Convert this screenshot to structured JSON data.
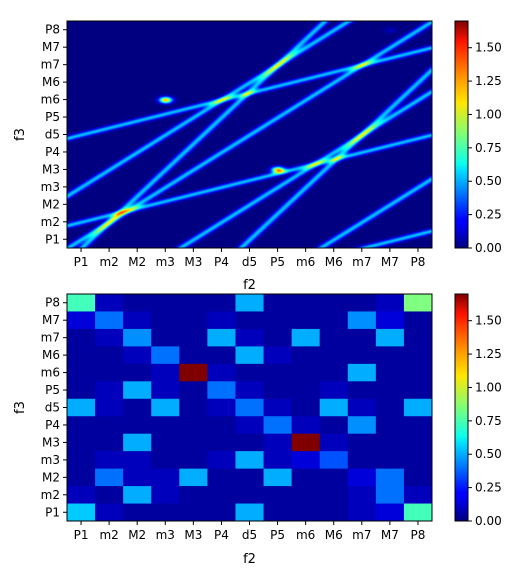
{
  "chart_data": [
    {
      "type": "heatmap",
      "render": "continuous",
      "xlabel": "f2",
      "ylabel": "f3",
      "x_ticks": [
        "P1",
        "m2",
        "M2",
        "m3",
        "M3",
        "P4",
        "d5",
        "P5",
        "m6",
        "M6",
        "m7",
        "M7",
        "P8"
      ],
      "y_ticks": [
        "P1",
        "m2",
        "M2",
        "m3",
        "M3",
        "P4",
        "d5",
        "P5",
        "m6",
        "M6",
        "m7",
        "M7",
        "P8"
      ],
      "colormap": "jet",
      "colorbar_range": [
        0,
        1.7
      ],
      "colorbar_ticks": [
        "0.00",
        "0.25",
        "0.50",
        "0.75",
        "1.00",
        "1.25",
        "1.50"
      ],
      "colorbar_tick_values": [
        0,
        0.25,
        0.5,
        0.75,
        1.0,
        1.25,
        1.5
      ],
      "peaks": [
        {
          "x": "m3",
          "y": "m6",
          "value": 1.7
        },
        {
          "x": "P5",
          "y": "M3",
          "value": 1.7
        },
        {
          "x": "M7",
          "y": "P8",
          "value": 0.6
        }
      ]
    },
    {
      "type": "heatmap",
      "render": "discrete",
      "xlabel": "f2",
      "ylabel": "f3",
      "x_ticks": [
        "P1",
        "m2",
        "M2",
        "m3",
        "M3",
        "P4",
        "d5",
        "P5",
        "m6",
        "M6",
        "m7",
        "M7",
        "P8"
      ],
      "y_ticks": [
        "P1",
        "m2",
        "M2",
        "m3",
        "M3",
        "P4",
        "d5",
        "P5",
        "m6",
        "M6",
        "m7",
        "M7",
        "P8"
      ],
      "colormap": "jet",
      "colorbar_range": [
        0,
        1.7
      ],
      "colorbar_ticks": [
        "0.00",
        "0.25",
        "0.50",
        "0.75",
        "1.00",
        "1.25",
        "1.50"
      ],
      "colorbar_tick_values": [
        0,
        0.25,
        0.5,
        0.75,
        1.0,
        1.25,
        1.5
      ],
      "matrix_rows_top_to_bottom": [
        [
          0.75,
          0.1,
          0.05,
          0.05,
          0.05,
          0.05,
          0.5,
          0.05,
          0.05,
          0.05,
          0.05,
          0.1,
          0.85
        ],
        [
          0.15,
          0.4,
          0.1,
          0.05,
          0.05,
          0.1,
          0.05,
          0.05,
          0.05,
          0.05,
          0.45,
          0.15,
          0.05
        ],
        [
          0.05,
          0.1,
          0.45,
          0.05,
          0.05,
          0.5,
          0.1,
          0.05,
          0.5,
          0.05,
          0.05,
          0.5,
          0.05
        ],
        [
          0.05,
          0.05,
          0.1,
          0.4,
          0.05,
          0.05,
          0.5,
          0.1,
          0.05,
          0.05,
          0.05,
          0.05,
          0.05
        ],
        [
          0.05,
          0.05,
          0.05,
          0.1,
          1.7,
          0.1,
          0.05,
          0.05,
          0.05,
          0.05,
          0.5,
          0.05,
          0.05
        ],
        [
          0.05,
          0.1,
          0.5,
          0.1,
          0.05,
          0.4,
          0.1,
          0.05,
          0.05,
          0.1,
          0.05,
          0.05,
          0.05
        ],
        [
          0.5,
          0.1,
          0.05,
          0.5,
          0.05,
          0.1,
          0.4,
          0.1,
          0.05,
          0.5,
          0.1,
          0.05,
          0.5
        ],
        [
          0.05,
          0.05,
          0.05,
          0.05,
          0.05,
          0.05,
          0.1,
          0.4,
          0.1,
          0.05,
          0.45,
          0.05,
          0.05
        ],
        [
          0.05,
          0.05,
          0.5,
          0.05,
          0.05,
          0.05,
          0.05,
          0.1,
          1.7,
          0.1,
          0.05,
          0.05,
          0.05
        ],
        [
          0.05,
          0.1,
          0.1,
          0.05,
          0.05,
          0.1,
          0.5,
          0.1,
          0.15,
          0.35,
          0.05,
          0.05,
          0.05
        ],
        [
          0.05,
          0.4,
          0.1,
          0.1,
          0.5,
          0.05,
          0.05,
          0.5,
          0.05,
          0.05,
          0.15,
          0.4,
          0.05
        ],
        [
          0.1,
          0.05,
          0.5,
          0.1,
          0.05,
          0.05,
          0.05,
          0.05,
          0.05,
          0.05,
          0.1,
          0.4,
          0.1
        ],
        [
          0.55,
          0.1,
          0.05,
          0.05,
          0.05,
          0.05,
          0.5,
          0.05,
          0.05,
          0.05,
          0.1,
          0.15,
          0.75
        ]
      ]
    }
  ]
}
